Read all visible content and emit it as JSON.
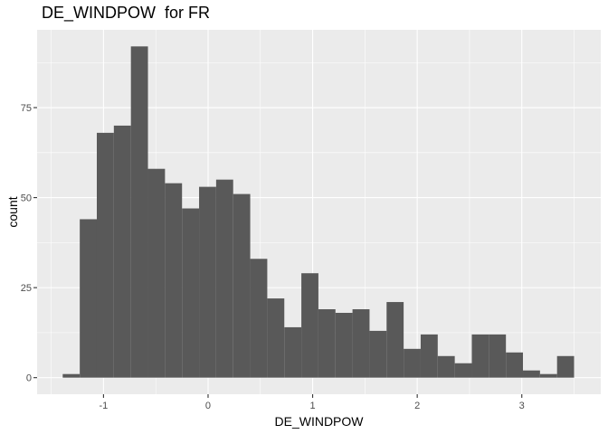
{
  "chart_data": {
    "type": "bar",
    "title": "DE_WINDPOW  for FR",
    "xlabel": "DE_WINDPOW",
    "ylabel": "count",
    "xlim": [
      -1.635,
      3.755
    ],
    "ylim": [
      -4.6,
      96.6
    ],
    "grid": true,
    "x_ticks": [
      -1,
      0,
      1,
      2,
      3
    ],
    "x_tick_labels": [
      "-1",
      "0",
      "1",
      "2",
      "3"
    ],
    "y_ticks": [
      0,
      25,
      50,
      75
    ],
    "y_tick_labels": [
      "0",
      "25",
      "50",
      "75"
    ],
    "bin_start": -1.39,
    "bin_width": 0.163,
    "values": [
      1,
      44,
      68,
      70,
      92,
      58,
      54,
      47,
      53,
      55,
      51,
      33,
      22,
      14,
      29,
      19,
      18,
      19,
      13,
      21,
      8,
      12,
      6,
      4,
      12,
      12,
      7,
      2,
      1,
      6
    ],
    "colors": {
      "bar": "#595959",
      "panel": "#ebebeb",
      "grid_major": "#ffffff"
    }
  }
}
